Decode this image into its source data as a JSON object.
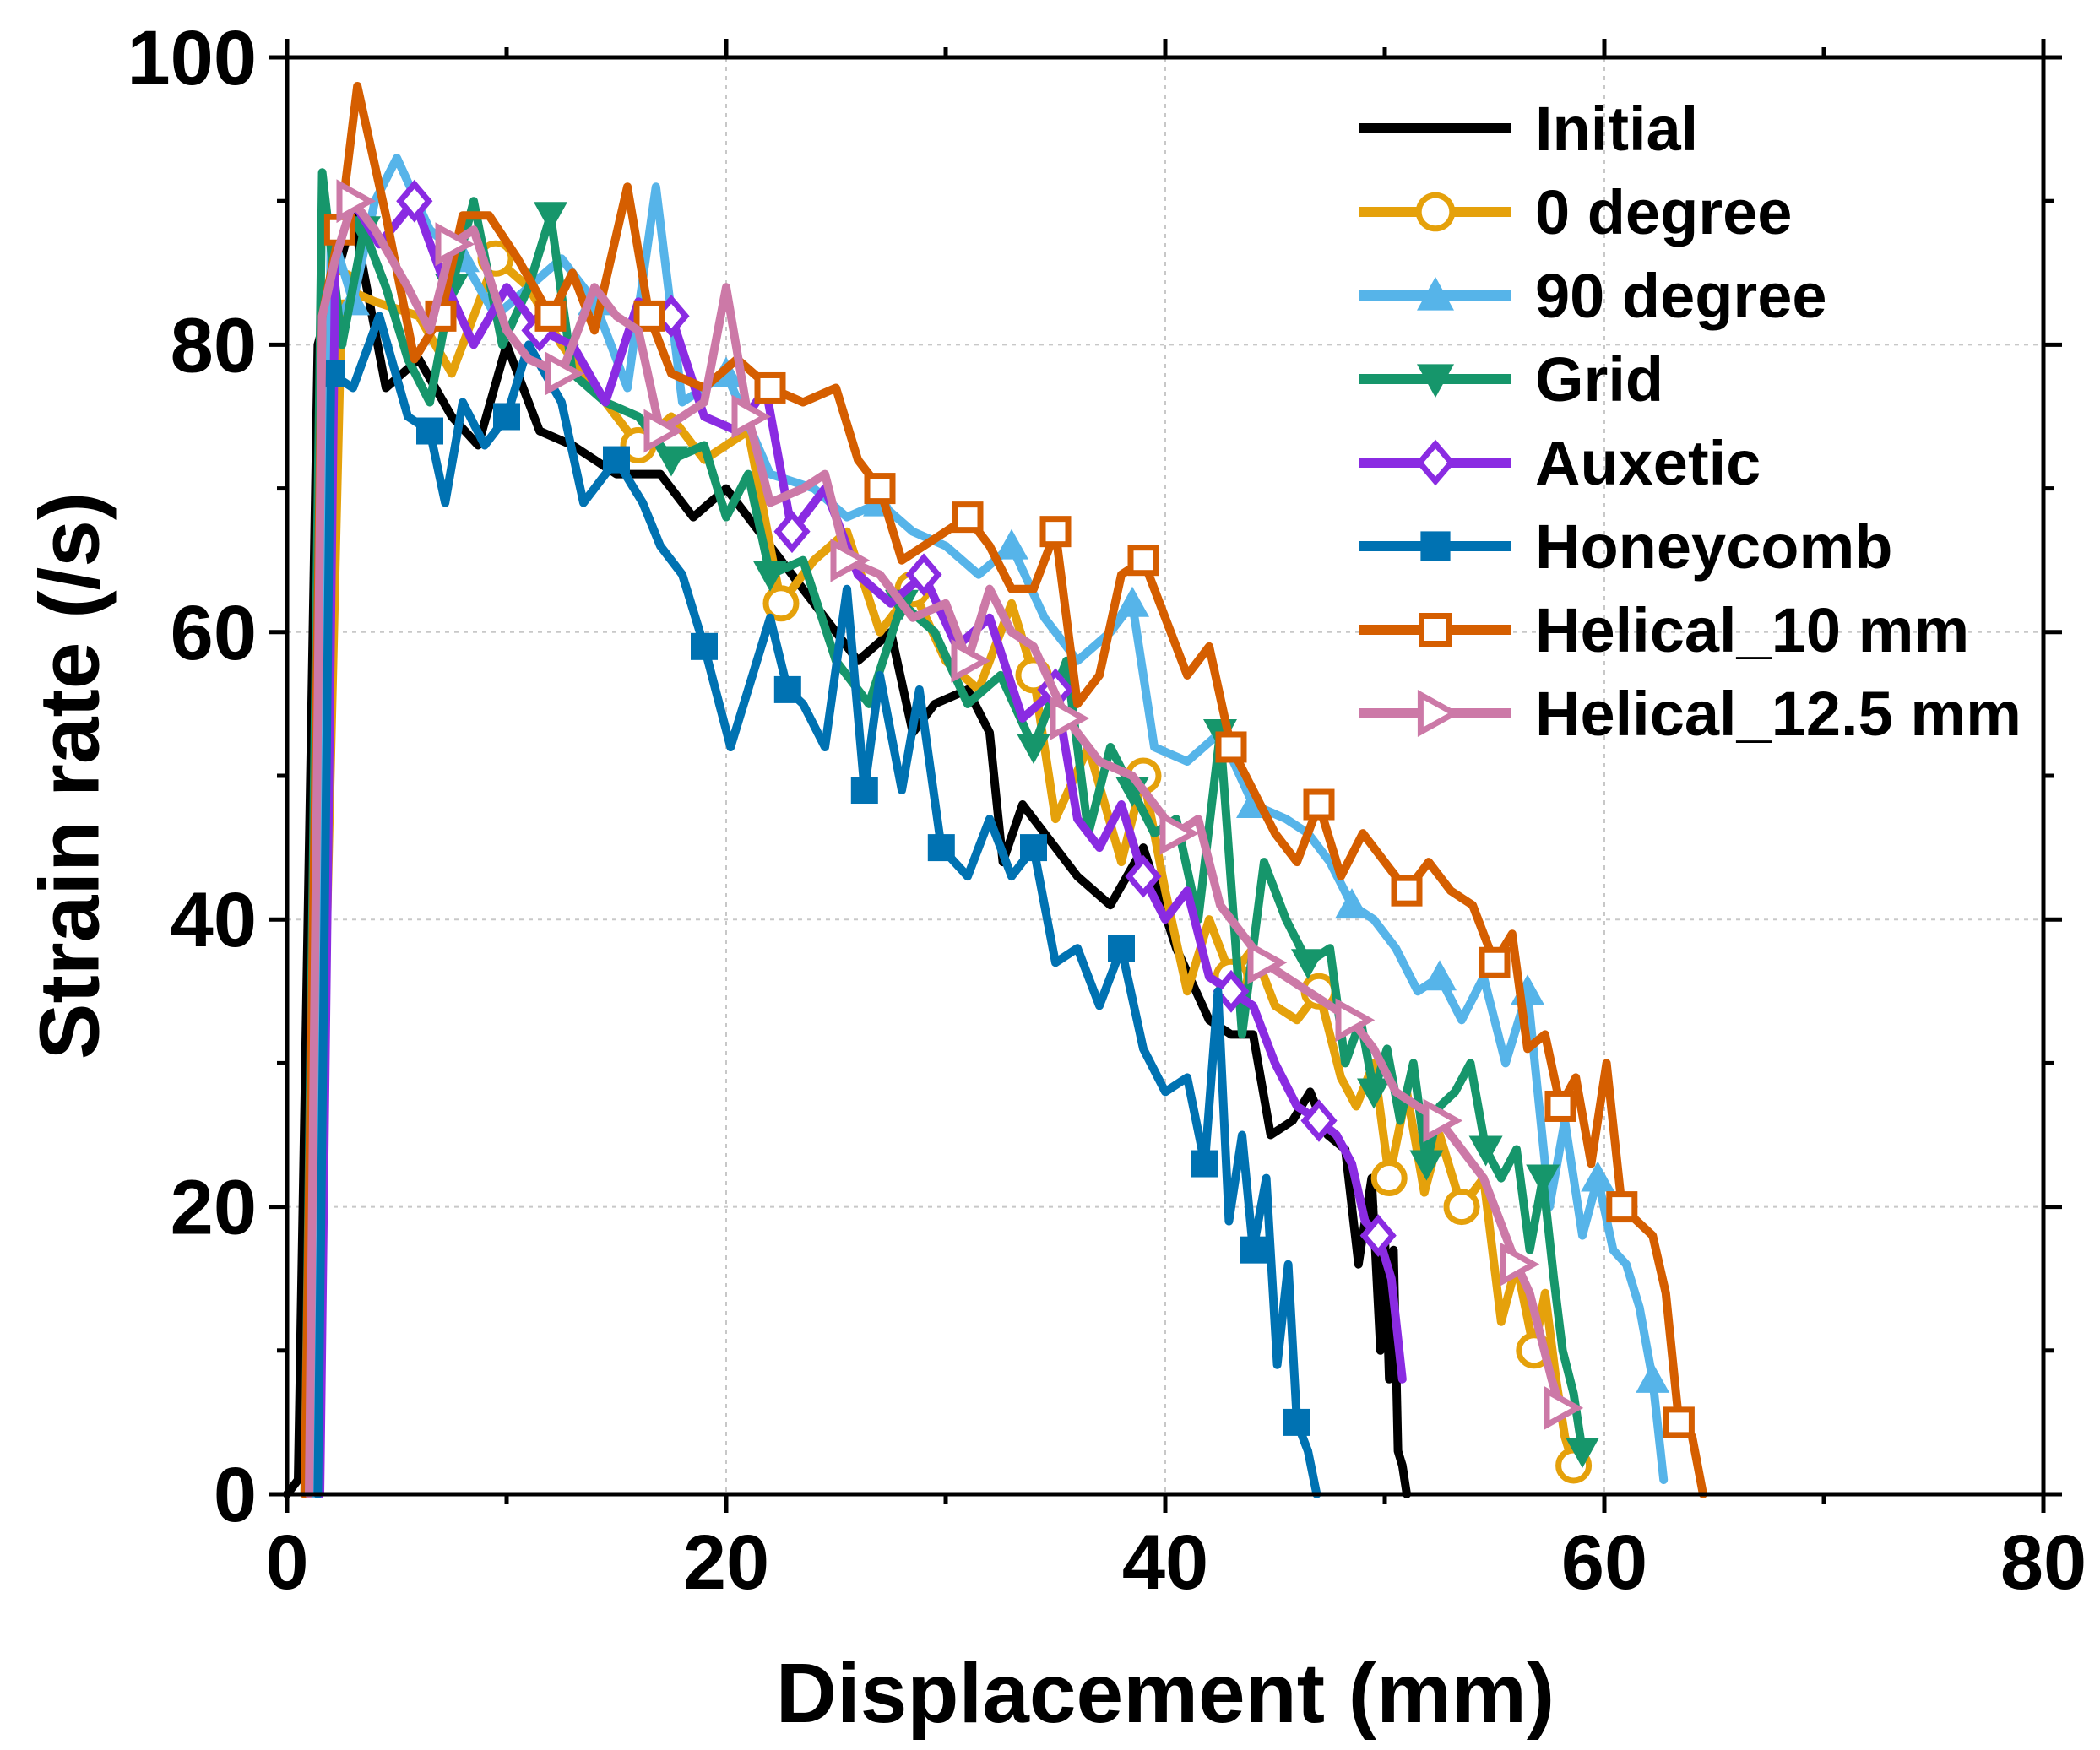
{
  "chart_data": {
    "type": "line",
    "title": "",
    "xlabel": "Displacement (mm)",
    "ylabel": "Strain rate (/s)",
    "xlim": [
      0,
      80
    ],
    "ylim": [
      0,
      100
    ],
    "x_ticks": [
      0,
      20,
      40,
      60,
      80
    ],
    "y_ticks": [
      0,
      20,
      40,
      60,
      80,
      100
    ],
    "x_tick_labels": [
      "0",
      "20",
      "40",
      "60",
      "80"
    ],
    "y_tick_labels": [
      "0",
      "20",
      "40",
      "60",
      "80",
      "100"
    ],
    "grid": true,
    "legend_position": "top-right",
    "series": [
      {
        "name": "Initial",
        "color": "#000000",
        "marker": "none",
        "x": [
          0,
          0.5,
          1.4,
          3.0,
          4.5,
          6.0,
          7.5,
          8.7,
          10.0,
          11.5,
          13.0,
          15.0,
          17.0,
          18.5,
          20.0,
          22.0,
          24.0,
          26.0,
          27.5,
          28.5,
          29.5,
          31.0,
          32.0,
          32.6,
          33.5,
          34.5,
          36.0,
          37.5,
          39.0,
          40.5,
          42.0,
          43.0,
          44.0,
          44.8,
          45.8,
          46.6,
          47.4,
          48.2,
          48.8,
          49.4,
          49.8,
          50.0,
          50.2,
          50.4,
          50.6,
          50.8,
          51.0
        ],
        "y": [
          0,
          1,
          80,
          89,
          77,
          79,
          75,
          73,
          80,
          74,
          73,
          71,
          71,
          68,
          70,
          66,
          62,
          58,
          60,
          53,
          55,
          56,
          53,
          44,
          48,
          46,
          43,
          41,
          45,
          38,
          33,
          32,
          32,
          25,
          26,
          28,
          25,
          24,
          16,
          22,
          10,
          18,
          8,
          17,
          3,
          2,
          0
        ]
      },
      {
        "name": "0 degree",
        "color": "#E5A10B",
        "marker": "circle",
        "x": [
          1.2,
          2.5,
          4.0,
          6.0,
          7.5,
          9.5,
          11.0,
          12.5,
          14.5,
          16.0,
          17.5,
          19.0,
          21.0,
          22.5,
          24.0,
          25.5,
          27.0,
          28.5,
          30.0,
          31.5,
          33.0,
          34.0,
          35.0,
          36.5,
          38.0,
          39.0,
          40.0,
          41.0,
          42.0,
          43.0,
          44.0,
          45.0,
          46.0,
          47.0,
          48.0,
          48.7,
          49.5,
          50.2,
          51.0,
          51.8,
          52.5,
          53.5,
          54.5,
          55.3,
          56.0,
          56.8,
          57.3,
          57.8,
          58.2,
          58.6
        ],
        "y": [
          0,
          84,
          83,
          82,
          78,
          86,
          84,
          80,
          76,
          73,
          75,
          72,
          74,
          62,
          65,
          67,
          60,
          63,
          58,
          56,
          62,
          57,
          47,
          52,
          44,
          50,
          42,
          35,
          40,
          36,
          38,
          34,
          33,
          35,
          29,
          27,
          30,
          22,
          28,
          21,
          25,
          20,
          22,
          12,
          16,
          10,
          14,
          8,
          4,
          2
        ]
      },
      {
        "name": "90 degree",
        "color": "#56B4E9",
        "marker": "triangle-up",
        "x": [
          1.2,
          2.0,
          3.0,
          4.0,
          5.0,
          6.5,
          8.0,
          9.5,
          11.0,
          12.5,
          14.0,
          15.5,
          16.8,
          18.0,
          20.0,
          22.0,
          24.0,
          25.5,
          27.0,
          28.5,
          30.0,
          31.5,
          33.0,
          34.5,
          36.0,
          37.5,
          38.5,
          39.5,
          41.0,
          42.5,
          44.0,
          45.5,
          46.5,
          47.5,
          48.5,
          49.5,
          50.5,
          51.5,
          52.5,
          53.5,
          54.5,
          55.5,
          56.5,
          57.5,
          58.2,
          59.0,
          59.7,
          60.4,
          61.0,
          61.6,
          62.2,
          62.7
        ],
        "y": [
          0,
          88,
          83,
          90,
          93,
          88,
          86,
          82,
          84,
          86,
          83,
          77,
          91,
          76,
          78,
          71,
          70,
          68,
          69,
          67,
          66,
          64,
          66,
          61,
          58,
          60,
          62,
          52,
          51,
          53,
          48,
          47,
          46,
          44,
          41,
          40,
          38,
          35,
          36,
          33,
          36,
          30,
          35,
          20,
          26,
          18,
          22,
          17,
          16,
          13,
          8,
          1
        ]
      },
      {
        "name": "Grid",
        "color": "#16966B",
        "marker": "triangle-down",
        "x": [
          0.8,
          1.6,
          2.5,
          3.5,
          4.5,
          5.5,
          6.5,
          7.5,
          8.5,
          9.8,
          11.0,
          12.0,
          13.0,
          14.5,
          16.0,
          17.5,
          19.0,
          20.0,
          21.0,
          22.0,
          23.5,
          25.0,
          26.5,
          28.0,
          29.5,
          31.0,
          32.5,
          34.0,
          35.5,
          36.5,
          37.5,
          38.5,
          39.5,
          40.5,
          41.5,
          42.5,
          43.5,
          44.5,
          45.5,
          46.5,
          47.5,
          48.2,
          48.9,
          49.5,
          50.1,
          50.7,
          51.3,
          51.9,
          52.5,
          53.2,
          53.9,
          54.6,
          55.3,
          56.0,
          56.6,
          57.2,
          57.7,
          58.1,
          58.6,
          59.0
        ],
        "y": [
          0,
          92,
          80,
          88,
          84,
          79,
          76,
          84,
          90,
          80,
          84,
          89,
          78,
          76,
          75,
          72,
          73,
          68,
          71,
          64,
          65,
          58,
          55,
          62,
          60,
          55,
          57,
          52,
          58,
          46,
          52,
          49,
          46,
          47,
          40,
          53,
          32,
          44,
          40,
          37,
          38,
          30,
          33,
          28,
          31,
          26,
          30,
          23,
          27,
          28,
          30,
          24,
          22,
          24,
          17,
          22,
          15,
          10,
          7,
          3
        ]
      },
      {
        "name": "Auxetic",
        "color": "#8A2BE2",
        "marker": "diamond",
        "x": [
          1.5,
          2.2,
          3.0,
          4.2,
          5.8,
          7.0,
          8.5,
          10.0,
          11.5,
          13.0,
          14.5,
          16.0,
          17.5,
          19.0,
          20.5,
          21.8,
          23.0,
          24.5,
          26.0,
          27.5,
          29.0,
          30.5,
          32.0,
          33.5,
          35.0,
          36.0,
          37.0,
          38.0,
          39.0,
          40.0,
          41.0,
          42.0,
          43.0,
          44.0,
          45.0,
          46.0,
          47.0,
          47.8,
          48.5,
          49.1,
          49.7,
          50.3,
          50.8
        ],
        "y": [
          0,
          86,
          90,
          87,
          90,
          85,
          80,
          84,
          81,
          80,
          76,
          83,
          82,
          75,
          74,
          77,
          67,
          70,
          64,
          62,
          64,
          59,
          61,
          54,
          56,
          47,
          45,
          48,
          43,
          40,
          42,
          36,
          35,
          34,
          30,
          27,
          26,
          25,
          23,
          19,
          18,
          15,
          8
        ]
      },
      {
        "name": "Honeycomb",
        "color": "#0072B2",
        "marker": "square",
        "x": [
          1.4,
          2.0,
          3.0,
          4.2,
          5.5,
          6.5,
          7.2,
          8.0,
          9.0,
          10.0,
          11.0,
          12.5,
          13.5,
          15.0,
          16.2,
          17.0,
          18.0,
          19.0,
          20.2,
          21.0,
          22.0,
          22.8,
          23.5,
          24.5,
          25.5,
          26.3,
          27.0,
          28.0,
          28.8,
          29.8,
          31.0,
          32.0,
          33.0,
          34.0,
          35.0,
          36.0,
          37.0,
          38.0,
          39.0,
          40.0,
          41.0,
          41.8,
          42.4,
          42.9,
          43.5,
          44.0,
          44.6,
          45.1,
          45.6,
          46.0,
          46.5,
          46.9
        ],
        "y": [
          0,
          78,
          77,
          82,
          75,
          74,
          69,
          76,
          73,
          75,
          80,
          76,
          69,
          72,
          69,
          66,
          64,
          59,
          52,
          56,
          61,
          56,
          55,
          52,
          63,
          49,
          57,
          49,
          56,
          45,
          43,
          47,
          43,
          45,
          37,
          38,
          34,
          38,
          31,
          28,
          29,
          23,
          35,
          19,
          25,
          17,
          22,
          9,
          16,
          5,
          3,
          0
        ]
      },
      {
        "name": "Helical_10 mm",
        "color": "#D55E00",
        "marker": "square-open",
        "x": [
          0.8,
          1.6,
          2.4,
          3.2,
          4.5,
          5.8,
          7.0,
          8.0,
          9.2,
          10.5,
          12.0,
          13.0,
          14.0,
          15.5,
          16.5,
          17.5,
          19.0,
          20.5,
          22.0,
          23.5,
          25.0,
          26.0,
          27.0,
          28.0,
          29.0,
          30.0,
          31.0,
          32.0,
          33.0,
          34.0,
          35.0,
          36.0,
          37.0,
          38.0,
          39.0,
          40.0,
          41.0,
          42.0,
          43.0,
          44.0,
          45.0,
          46.0,
          47.0,
          48.0,
          49.0,
          50.0,
          51.0,
          52.0,
          53.0,
          54.0,
          55.0,
          55.8,
          56.5,
          57.3,
          58.0,
          58.7,
          59.4,
          60.1,
          60.8,
          61.5,
          62.2,
          62.8,
          63.4,
          64.0,
          64.5
        ],
        "y": [
          0,
          82,
          88,
          98,
          89,
          79,
          82,
          89,
          89,
          86,
          82,
          85,
          81,
          91,
          82,
          78,
          77,
          79,
          77,
          76,
          77,
          72,
          70,
          65,
          66,
          67,
          68,
          66,
          63,
          63,
          67,
          55,
          57,
          64,
          65,
          61,
          57,
          59,
          52,
          49,
          46,
          44,
          48,
          43,
          46,
          44,
          42,
          44,
          42,
          41,
          37,
          39,
          31,
          32,
          27,
          29,
          23,
          30,
          20,
          19,
          18,
          14,
          5,
          4,
          0
        ]
      },
      {
        "name": "Helical_12.5 mm",
        "color": "#CC79A7",
        "marker": "triangle-right",
        "x": [
          1.0,
          1.6,
          2.2,
          3.0,
          4.0,
          5.5,
          6.5,
          7.5,
          8.5,
          10.0,
          11.0,
          12.5,
          14.0,
          15.0,
          16.0,
          17.0,
          18.0,
          19.0,
          20.0,
          21.0,
          22.0,
          23.5,
          24.5,
          25.5,
          27.0,
          28.5,
          30.0,
          31.0,
          32.0,
          33.0,
          34.0,
          35.5,
          37.0,
          38.5,
          39.5,
          40.5,
          41.5,
          42.5,
          43.5,
          44.5,
          45.5,
          46.5,
          47.5,
          48.5,
          49.5,
          50.5,
          51.5,
          52.5,
          53.5,
          54.5,
          55.5,
          56.0,
          56.6,
          57.1,
          57.6,
          58.0
        ],
        "y": [
          0,
          82,
          86,
          90,
          88,
          84,
          81,
          87,
          88,
          81,
          79,
          78,
          84,
          82,
          81,
          74,
          75,
          76,
          84,
          75,
          69,
          70,
          71,
          65,
          64,
          61,
          62,
          58,
          63,
          60,
          59,
          54,
          51,
          50,
          48,
          46,
          47,
          41,
          39,
          37,
          36,
          35,
          34,
          33,
          31,
          28,
          27,
          26,
          24,
          22,
          18,
          16,
          14,
          11,
          8,
          6
        ]
      }
    ]
  }
}
